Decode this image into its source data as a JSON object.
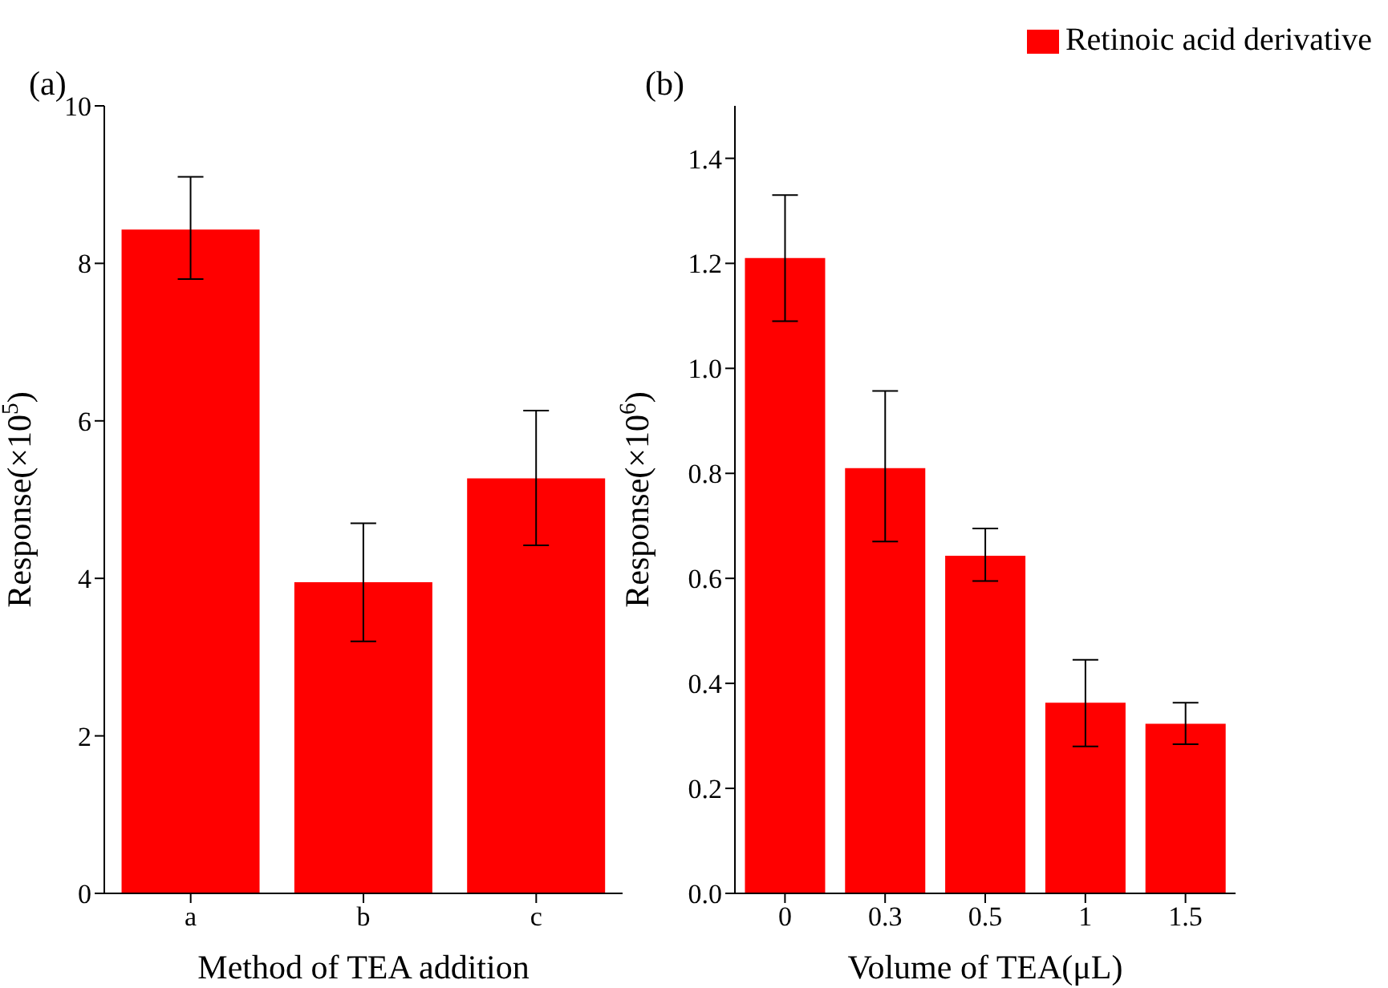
{
  "chart_data": [
    {
      "type": "bar",
      "title": "(a)",
      "xlabel": "Method of TEA addition",
      "ylabel": "Response(×10$^{5}$)",
      "categories": [
        "a",
        "b",
        "c"
      ],
      "series": [
        {
          "color": "#ff0000",
          "values": [
            8.43,
            3.95,
            5.27
          ],
          "errors": [
            [
              7.8,
              9.1
            ],
            [
              3.2,
              4.7
            ],
            [
              4.42,
              6.13
            ]
          ]
        }
      ],
      "ylim": [
        0,
        10
      ],
      "yticks": [
        0,
        2,
        4,
        6,
        8,
        10
      ],
      "grid": false,
      "legend": false
    },
    {
      "type": "bar",
      "title": "(b)",
      "xlabel": "Volume of  TEA(μL)",
      "ylabel": "Response(×10$^{6}$)",
      "categories": [
        "0",
        "0.3",
        "0.5",
        "1",
        "1.5"
      ],
      "series": [
        {
          "name": "Retinoic acid derivative",
          "color": "#ff0000",
          "values": [
            1.21,
            0.81,
            0.643,
            0.363,
            0.323
          ],
          "errors": [
            [
              1.09,
              1.33
            ],
            [
              0.67,
              0.957
            ],
            [
              0.595,
              0.695
            ],
            [
              0.28,
              0.445
            ],
            [
              0.284,
              0.363
            ]
          ]
        }
      ],
      "ylim": [
        0,
        1.5
      ],
      "yticks": [
        {
          "value": 0,
          "label": "0.0"
        },
        0.2,
        0.4,
        0.6,
        0.8,
        {
          "value": 1,
          "label": "1.0"
        },
        1.2,
        1.4
      ],
      "grid": false,
      "legend": "top right"
    }
  ]
}
